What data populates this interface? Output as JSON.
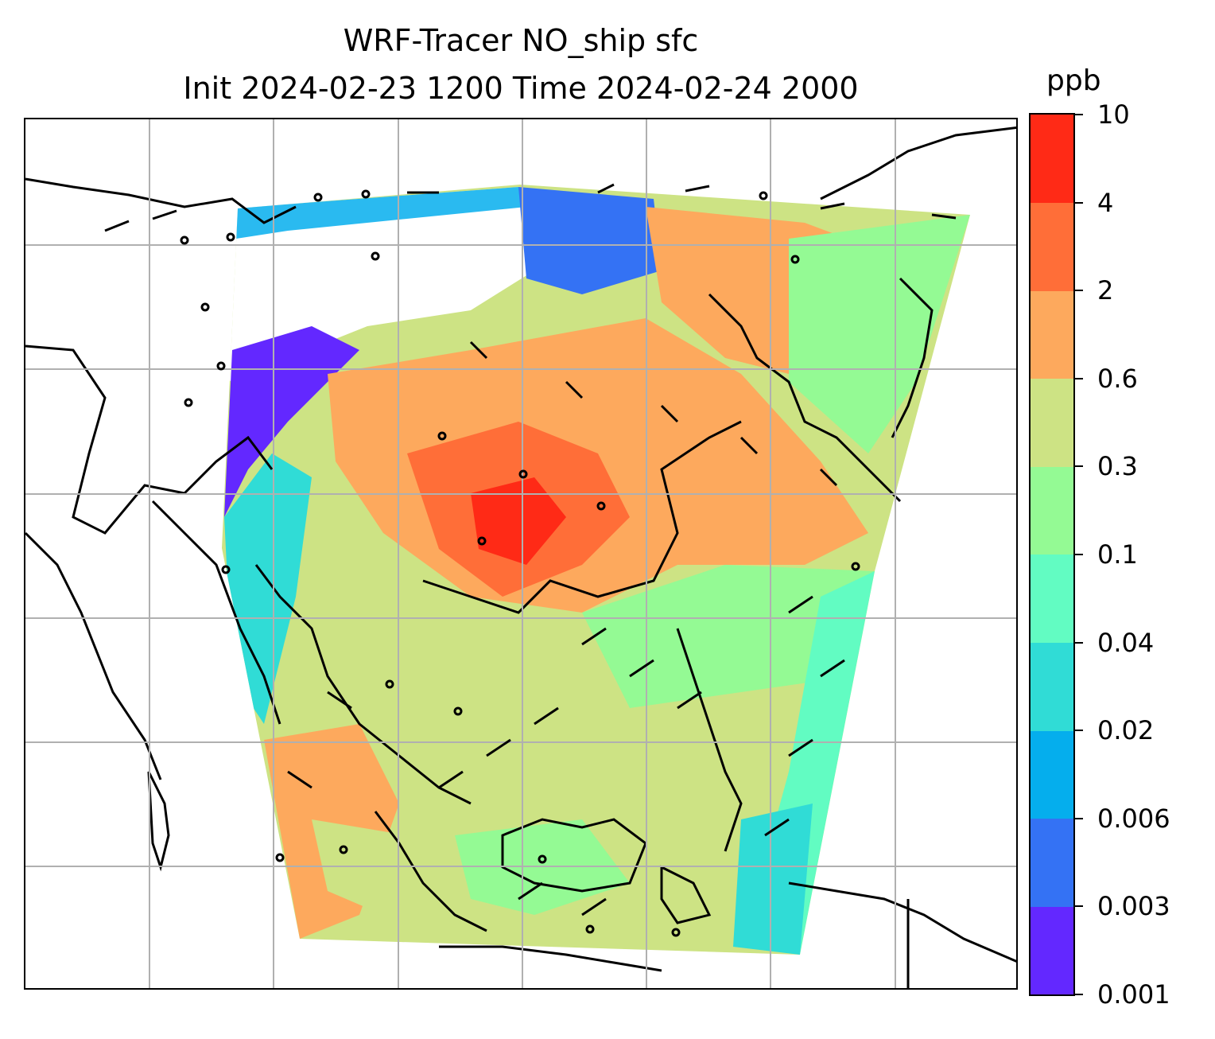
{
  "title": {
    "line1": "WRF-Tracer NO_ship sfc",
    "line2": "Init 2024-02-23 1200 Time 2024-02-24 2000"
  },
  "colorbar": {
    "unit": "ppb",
    "levels": [
      "0.001",
      "0.003",
      "0.006",
      "0.02",
      "0.04",
      "0.1",
      "0.3",
      "0.6",
      "2",
      "4",
      "10"
    ],
    "colors": [
      "#6328ff",
      "#3472f4",
      "#05aeed",
      "#30dcd6",
      "#62fcc2",
      "#94fa94",
      "#cde384",
      "#fda95d",
      "#ff6e38",
      "#ff2a16"
    ]
  },
  "map": {
    "gridline_color": "#b0b0b0",
    "coastline_color": "#000000",
    "no_data_color": "#ffffff"
  }
}
